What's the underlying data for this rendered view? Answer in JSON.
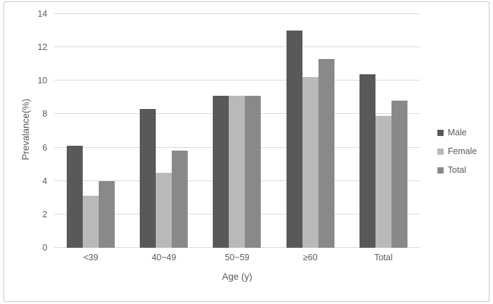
{
  "chart_data": {
    "type": "bar",
    "title": "",
    "xlabel": "Age (y)",
    "ylabel": "Prevalance(%)",
    "categories": [
      "<39",
      "40~49",
      "50~59",
      "≥60",
      "Total"
    ],
    "series": [
      {
        "name": "Male",
        "color": "#595959",
        "values": [
          6.1,
          8.3,
          9.1,
          13.0,
          10.4
        ]
      },
      {
        "name": "Female",
        "color": "#b9b9b9",
        "values": [
          3.1,
          4.5,
          9.1,
          10.2,
          7.9
        ]
      },
      {
        "name": "Total",
        "color": "#898989",
        "values": [
          4.0,
          5.8,
          9.1,
          11.3,
          8.8
        ]
      }
    ],
    "ylim": [
      0,
      14
    ],
    "y_ticks": [
      0,
      2,
      4,
      6,
      8,
      10,
      12,
      14
    ],
    "grid": "horizontal",
    "legend_position": "right"
  },
  "colors": {
    "gridline": "#d9d9d9",
    "axis_text": "#595959",
    "frame_border": "#c8c8c8",
    "background": "#ffffff"
  }
}
